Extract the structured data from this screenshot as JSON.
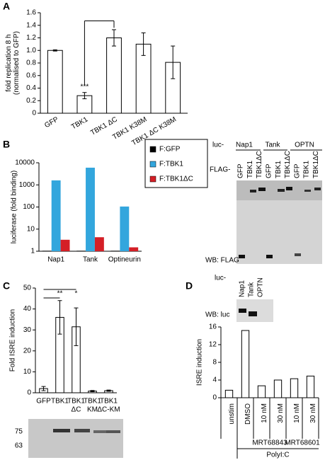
{
  "chart_data": [
    {
      "type": "bar",
      "panel": "A",
      "y_label": [
        "fold replication 8 h",
        "(normalised to GFP)"
      ],
      "categories": [
        [
          "GFP"
        ],
        [
          "TBK1"
        ],
        [
          "TBK1 ΔC"
        ],
        [
          "TBK1 K38M"
        ],
        [
          "TBK1 ΔC K38M"
        ]
      ],
      "values": [
        1.0,
        0.28,
        1.2,
        1.1,
        0.81
      ],
      "errors": [
        0.01,
        0.05,
        0.13,
        0.18,
        0.26
      ],
      "color": "#ffffff",
      "x_label_rotation": -30,
      "ylim": [
        0,
        1.6
      ],
      "yticks": [
        0,
        0.2,
        0.4,
        0.6,
        0.8,
        {
          "value": 1,
          "label": "1.0"
        },
        1.2,
        1.4,
        1.6
      ],
      "annotations": [
        "***"
      ]
    },
    {
      "type": "grouped_bar",
      "panel": "B",
      "y_label": [
        "luciferase (fold binding)"
      ],
      "log_y": true,
      "categories": [
        [
          "Nap1"
        ],
        [
          "Tank"
        ],
        [
          "Optineurin"
        ]
      ],
      "series": [
        {
          "name": "F:GFP",
          "color": "#000000",
          "values": [
            1.05,
            1.05,
            1.05
          ]
        },
        {
          "name": "F:TBK1",
          "color": "#33a6dd",
          "values": [
            1600,
            6000,
            105
          ]
        },
        {
          "name": "F:TBK1ΔC",
          "color": "#d41f26",
          "values": [
            3.3,
            4.3,
            1.5
          ]
        }
      ],
      "x_label_rotation": 0,
      "ylim": [
        1,
        10000
      ],
      "yticks": [
        1,
        10,
        100,
        1000,
        10000
      ]
    },
    {
      "type": "bar",
      "panel": "C",
      "y_label": [
        "Fold ISRE induction"
      ],
      "categories": [
        [
          "GFP"
        ],
        [
          "TBK1"
        ],
        [
          "TBK1",
          "ΔC"
        ],
        [
          "TBK1",
          "KM"
        ],
        [
          "TBK1",
          "ΔC-KM"
        ]
      ],
      "values": [
        2,
        36,
        31.5,
        0.8,
        1
      ],
      "errors": [
        1,
        8,
        9,
        0.3,
        0.3
      ],
      "color": "#ffffff",
      "x_label_rotation": 0,
      "ylim": [
        0,
        50
      ],
      "yticks": [
        0,
        10,
        20,
        30,
        40,
        50
      ],
      "annotations": [
        "**",
        "*"
      ]
    },
    {
      "type": "bar",
      "panel": "D",
      "y_label": [
        "ISRE induction"
      ],
      "categories": [
        [
          "unstim"
        ],
        [
          "DMSO"
        ],
        [
          "10 nM"
        ],
        [
          "30 nM"
        ],
        [
          "10 nM"
        ],
        [
          "30 nM"
        ]
      ],
      "values": [
        1.7,
        15.2,
        2.7,
        4.0,
        4.3,
        4.9
      ],
      "color": "#ffffff",
      "x_label_rotation": -90,
      "ylim": [
        0,
        16
      ],
      "yticks": [
        0,
        4,
        8,
        12,
        16
      ],
      "group_labels": [
        "MRT68843",
        "MRT68601",
        "PolyI:C"
      ]
    }
  ],
  "blot_b": {
    "luc_label": "luc-",
    "groups": [
      "Nap1",
      "Tank",
      "OPTN"
    ],
    "flag_label": "FLAG-",
    "lanes": [
      "GFP",
      "TBK1",
      "TBK1ΔC",
      "GFP",
      "TBK1",
      "TBK1ΔC",
      "GFP",
      "TBK1",
      "TBK1ΔC"
    ],
    "wb": "WB: FLAG"
  },
  "blot_b2": {
    "luc_label": "luc-",
    "lanes": [
      "Nap1",
      "Tank",
      "OPTN"
    ],
    "wb": "WB: luc"
  },
  "blot_c": {
    "markers": [
      75,
      63
    ]
  }
}
